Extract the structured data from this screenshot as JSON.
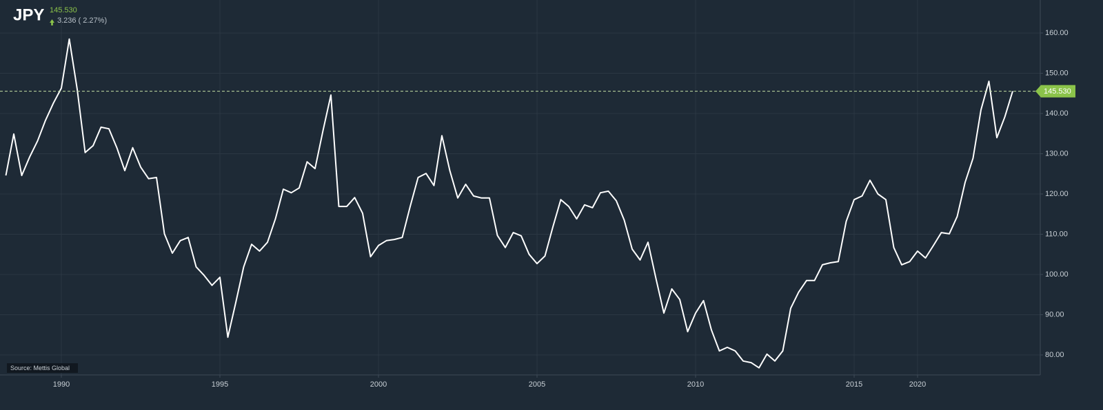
{
  "chart_data": {
    "type": "line",
    "title": "JPY",
    "source": "Source: Mettis Global",
    "change": 3.236,
    "change_pct": {
      "value": 2.27,
      "label": "( 2.27%)"
    },
    "last_price": {
      "value": 145.53,
      "label": "145.530"
    },
    "color": "#ffffff",
    "up_color": "#8bc34a",
    "grid": true,
    "ylim": [
      75.04,
      168.2
    ],
    "yticks": [
      {
        "value": 80,
        "label": "80.00"
      },
      {
        "value": 90,
        "label": "90.00"
      },
      {
        "value": 100,
        "label": "100.00"
      },
      {
        "value": 110,
        "label": "110.00"
      },
      {
        "value": 120,
        "label": "120.00"
      },
      {
        "value": 130,
        "label": "130.00"
      },
      {
        "value": 140,
        "label": "140.00"
      },
      {
        "value": 150,
        "label": "150.00"
      },
      {
        "value": 160,
        "label": "160.00"
      }
    ],
    "categories": [
      null,
      null,
      null,
      null,
      null,
      null,
      null,
      "1990",
      null,
      null,
      null,
      null,
      null,
      null,
      null,
      null,
      null,
      null,
      null,
      null,
      null,
      null,
      null,
      null,
      null,
      null,
      null,
      "1995",
      null,
      null,
      null,
      null,
      null,
      null,
      null,
      null,
      null,
      null,
      null,
      null,
      null,
      null,
      null,
      null,
      null,
      null,
      null,
      "2000",
      null,
      null,
      null,
      null,
      null,
      null,
      null,
      null,
      null,
      null,
      null,
      null,
      null,
      null,
      null,
      null,
      null,
      null,
      null,
      "2005",
      null,
      null,
      null,
      null,
      null,
      null,
      null,
      null,
      null,
      null,
      null,
      null,
      null,
      null,
      null,
      null,
      null,
      null,
      null,
      "2010",
      null,
      null,
      null,
      null,
      null,
      null,
      null,
      null,
      null,
      null,
      null,
      null,
      null,
      null,
      null,
      null,
      null,
      null,
      null,
      "2015",
      null,
      null,
      null,
      null,
      null,
      null,
      null,
      "2020",
      null,
      null,
      null,
      null,
      null,
      null,
      null,
      null,
      null,
      null,
      null,
      null
    ],
    "values": [
      124.6,
      134.9,
      124.6,
      129.2,
      133.2,
      138.3,
      142.6,
      146.3,
      158.5,
      146,
      130.3,
      132,
      136.6,
      136.2,
      131.5,
      125.8,
      131.5,
      126.7,
      123.8,
      124.1,
      110.1,
      105.3,
      108.4,
      109.2,
      101.9,
      99.8,
      97.3,
      99.3,
      84.4,
      93,
      101.9,
      107.5,
      105.8,
      108,
      113.8,
      121.2,
      120.3,
      121.5,
      128,
      126.3,
      135.7,
      144.6,
      116.9,
      116.9,
      119.1,
      115.2,
      104.4,
      107.2,
      108.4,
      108.7,
      109.2,
      116.9,
      124.1,
      125.1,
      122.1,
      134.5,
      125.8,
      119,
      122.4,
      119.5,
      119,
      119,
      109.7,
      106.7,
      110.4,
      109.6,
      105,
      102.7,
      104.6,
      111.8,
      118.6,
      116.9,
      113.8,
      117.3,
      116.6,
      120.3,
      120.7,
      118.3,
      113.5,
      106.3,
      103.6,
      108,
      99,
      90.4,
      96.4,
      93.8,
      85.8,
      90.4,
      93.5,
      86.2,
      81,
      81.9,
      81,
      78.5,
      78.1,
      76.8,
      80.2,
      78.5,
      81,
      91.6,
      95.6,
      98.5,
      98.5,
      102.4,
      102.9,
      103.2,
      113.2,
      118.6,
      119.5,
      123.4,
      120,
      118.6,
      106.7,
      102.4,
      103.2,
      105.8,
      104.1,
      107.2,
      110.4,
      110.1,
      114.4,
      122.9,
      128.9,
      140.9,
      148,
      134,
      139.1,
      145.53
    ]
  }
}
